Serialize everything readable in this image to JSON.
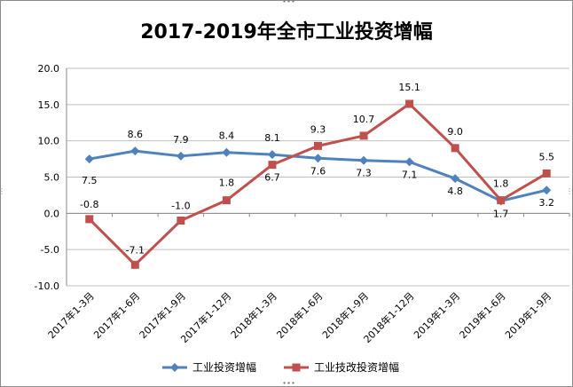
{
  "chart_data": {
    "type": "line",
    "title": "2017-2019年全市工业投资增幅",
    "categories": [
      "2017年1-3月",
      "2017年1-6月",
      "2017年1-9月",
      "2017年1-12月",
      "2018年1-3月",
      "2018年1-6月",
      "2018年1-9月",
      "2018年1-12月",
      "2019年1-3月",
      "2019年1-6月",
      "2019年1-9月"
    ],
    "ylim": [
      -10,
      20
    ],
    "yticks": [
      "20.0",
      "15.0",
      "10.0",
      "5.0",
      "0.0",
      "-5.0",
      "-10.0"
    ],
    "grid": true,
    "legend_position": "bottom",
    "series": [
      {
        "name": "工业投资增幅",
        "color": "#4f81bd",
        "marker": "diamond",
        "values": [
          7.5,
          8.6,
          7.9,
          8.4,
          8.1,
          7.6,
          7.3,
          7.1,
          4.8,
          1.7,
          3.2
        ],
        "labels": [
          "7.5",
          "8.6",
          "7.9",
          "8.4",
          "8.1",
          "7.6",
          "7.3",
          "7.1",
          "4.8",
          "1.7",
          "3.2"
        ]
      },
      {
        "name": "工业技改投资增幅",
        "color": "#c0504d",
        "marker": "square",
        "values": [
          -0.8,
          -7.1,
          -1.0,
          1.8,
          6.7,
          9.3,
          10.7,
          15.1,
          9.0,
          1.8,
          5.5
        ],
        "labels": [
          "-0.8",
          "-7.1",
          "-1.0",
          "1.8",
          "6.7",
          "9.3",
          "10.7",
          "15.1",
          "9.0",
          "1.8",
          "5.5"
        ]
      }
    ]
  }
}
